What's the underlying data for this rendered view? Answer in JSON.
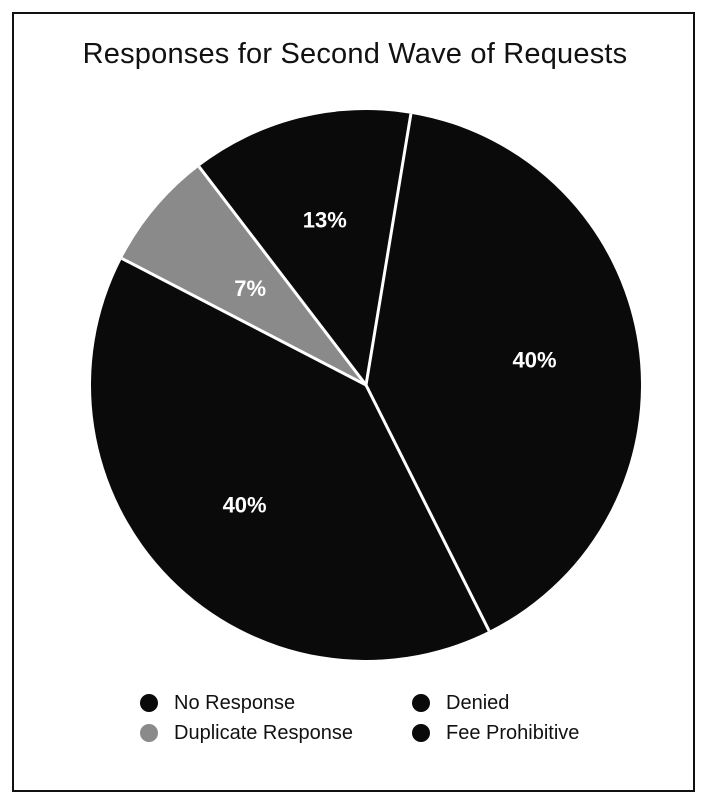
{
  "chart_data": {
    "type": "pie",
    "title": "Responses for Second Wave of Requests",
    "slices": [
      {
        "label": "No Response",
        "value": 40,
        "display": "40%",
        "color": "#0a0a0a"
      },
      {
        "label": "Denied",
        "value": 13,
        "display": "13%",
        "color": "#0a0a0a"
      },
      {
        "label": "Duplicate Response",
        "value": 7,
        "display": "7%",
        "color": "#8a8a8a"
      },
      {
        "label": "Fee Prohibitive",
        "value": 40,
        "display": "40%",
        "color": "#0a0a0a"
      }
    ],
    "legend": {
      "placement": "bottom",
      "items": [
        "No Response",
        "Denied",
        "Duplicate Response",
        "Fee Prohibitive"
      ]
    }
  }
}
